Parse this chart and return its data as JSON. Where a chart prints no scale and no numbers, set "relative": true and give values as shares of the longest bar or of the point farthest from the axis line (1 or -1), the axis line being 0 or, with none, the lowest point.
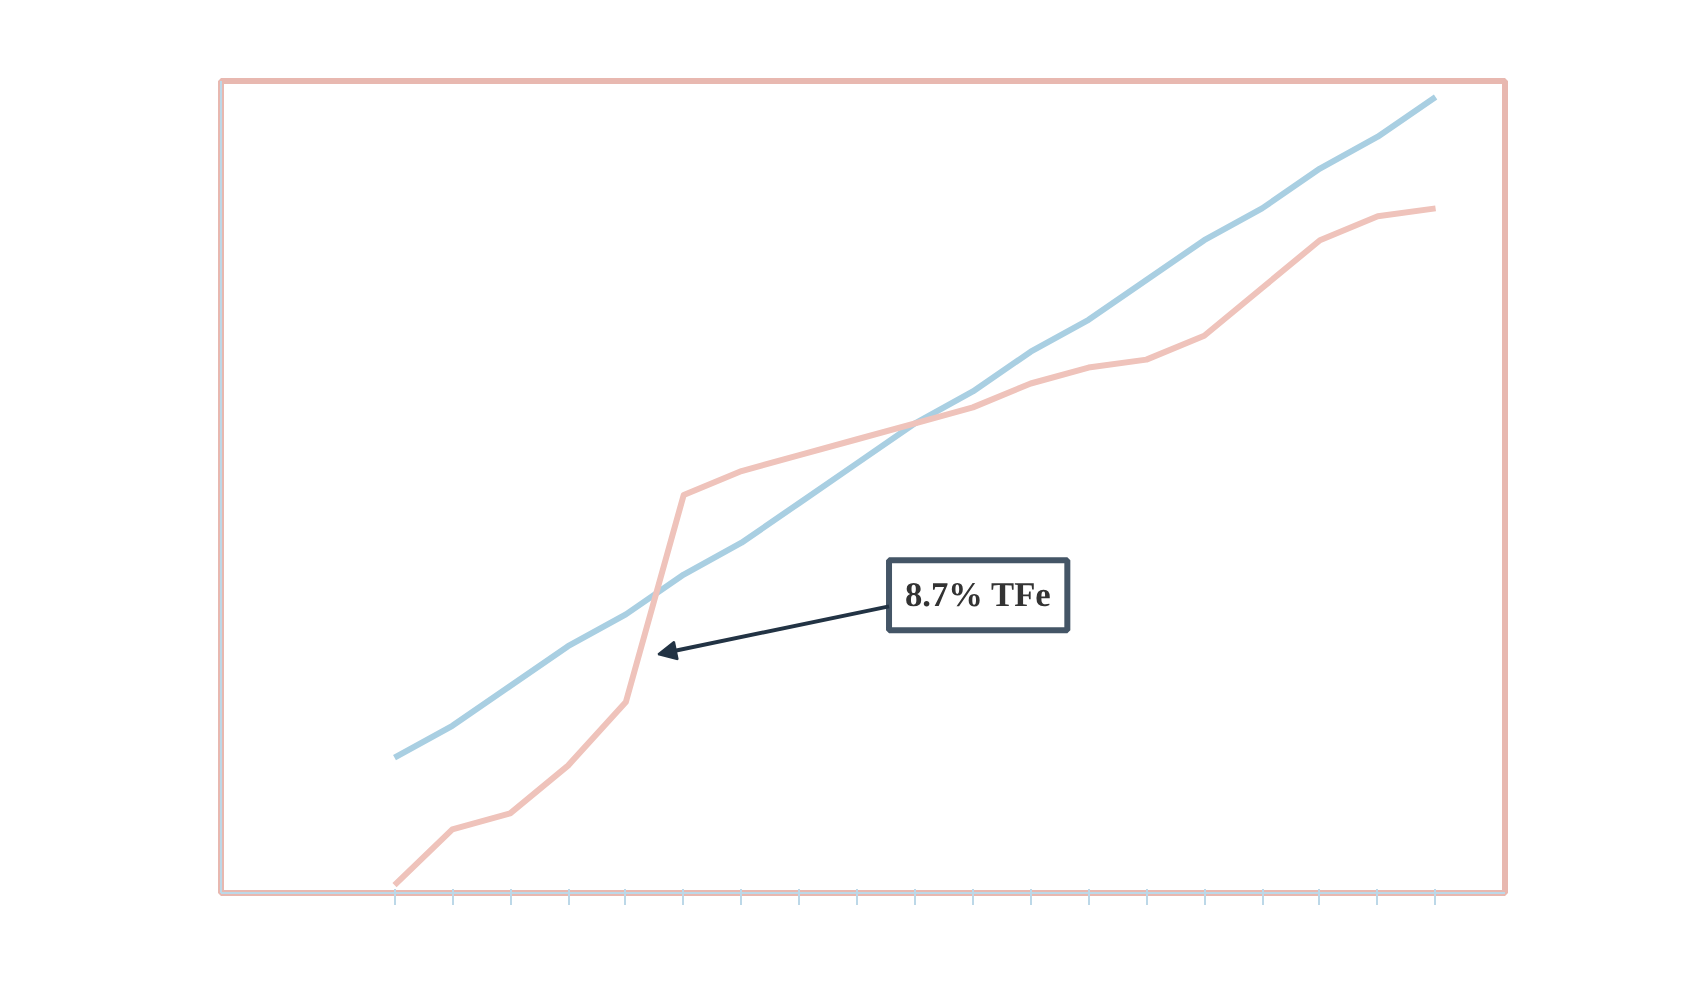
{
  "chart_data": {
    "type": "line",
    "relative": true,
    "categories": [
      null,
      null,
      null,
      null,
      null,
      null,
      null,
      null,
      null,
      null,
      null,
      null,
      null,
      null,
      null,
      null,
      null,
      null,
      null
    ],
    "series": [
      {
        "color": "#a9cfe2",
        "values": [
          0.17,
          0.21,
          0.26,
          0.31,
          0.35,
          0.4,
          0.44,
          0.49,
          0.54,
          0.59,
          0.63,
          0.68,
          0.72,
          0.77,
          0.82,
          0.86,
          0.91,
          0.95,
          1.0
        ]
      },
      {
        "color": "#efc3bb",
        "values": [
          0.01,
          0.08,
          0.1,
          0.16,
          0.24,
          0.5,
          0.53,
          0.55,
          0.57,
          0.59,
          0.61,
          0.64,
          0.66,
          0.67,
          0.7,
          0.76,
          0.82,
          0.85,
          0.86
        ]
      }
    ],
    "annotations": [
      "8.7% TFe"
    ],
    "line_style": "solid"
  }
}
